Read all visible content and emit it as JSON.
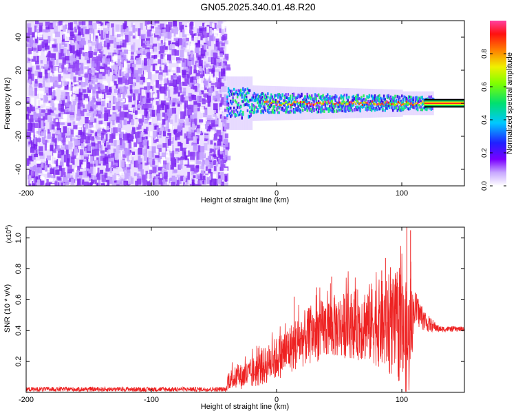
{
  "title": "GN05.2025.340.01.48.R20",
  "chart_data": [
    {
      "type": "heatmap",
      "name": "spectrogram",
      "xlabel": "Height of straight line (km)",
      "ylabel": "Frequency (Hz)",
      "xlim": [
        -200,
        150
      ],
      "ylim": [
        -50,
        50
      ],
      "x_ticks": [
        -200,
        -100,
        0,
        100
      ],
      "y_ticks": [
        -40,
        -20,
        0,
        20,
        40
      ],
      "noise_region_x": [
        -200,
        -40
      ],
      "signal_band": {
        "x_start": -40,
        "x_end": 150,
        "center_freq_hz": 0,
        "description": "narrow band near 0 Hz widening to about +/-8 Hz at x=-40, narrowing toward x=120"
      },
      "colorbar": {
        "label": "Normalized spectral amplitude",
        "range": [
          0.0,
          1.0
        ],
        "ticks": [
          0.0,
          0.2,
          0.4,
          0.6,
          0.8
        ],
        "tick_labels": [
          "0.0",
          "0.2",
          "0.4",
          "0.6",
          "0.8"
        ]
      }
    },
    {
      "type": "line",
      "name": "snr",
      "xlabel": "Height of straight line (km)",
      "ylabel": "SNR (10 * v/v)",
      "multiplier_label": "(x10",
      "multiplier_exponent": "4",
      "xlim": [
        -200,
        150
      ],
      "ylim": [
        0,
        1.07
      ],
      "x_ticks": [
        -200,
        -100,
        0,
        100
      ],
      "y_ticks": [
        0.2,
        0.4,
        0.6,
        0.8,
        1.0
      ],
      "series": [
        {
          "name": "SNR",
          "color": "#ee2222",
          "envelope_points": [
            {
              "x": -200,
              "base": 0.02,
              "amp": 0.015
            },
            {
              "x": -40,
              "base": 0.02,
              "amp": 0.015
            },
            {
              "x": -39,
              "base": 0.08,
              "amp": 0.06
            },
            {
              "x": -20,
              "base": 0.12,
              "amp": 0.1
            },
            {
              "x": 0,
              "base": 0.22,
              "amp": 0.14
            },
            {
              "x": 20,
              "base": 0.34,
              "amp": 0.18
            },
            {
              "x": 40,
              "base": 0.42,
              "amp": 0.2
            },
            {
              "x": 60,
              "base": 0.44,
              "amp": 0.22
            },
            {
              "x": 80,
              "base": 0.45,
              "amp": 0.28
            },
            {
              "x": 100,
              "base": 0.4,
              "amp": 0.35
            },
            {
              "x": 105,
              "base": 0.3,
              "amp": 0.4
            },
            {
              "x": 110,
              "base": 0.55,
              "amp": 0.12
            },
            {
              "x": 120,
              "base": 0.45,
              "amp": 0.06
            },
            {
              "x": 130,
              "base": 0.41,
              "amp": 0.02
            },
            {
              "x": 150,
              "base": 0.41,
              "amp": 0.015
            }
          ],
          "spikes": [
            {
              "x": 104,
              "y": 1.07
            },
            {
              "x": 107,
              "y": 1.05
            },
            {
              "x": 87,
              "y": 0.87
            },
            {
              "x": 91,
              "y": 0.81
            },
            {
              "x": 84,
              "y": 0.79
            },
            {
              "x": 95,
              "y": 0.76
            },
            {
              "x": 44,
              "y": 0.75
            },
            {
              "x": 32,
              "y": 0.68
            },
            {
              "x": 14,
              "y": 0.62
            }
          ]
        }
      ]
    }
  ]
}
